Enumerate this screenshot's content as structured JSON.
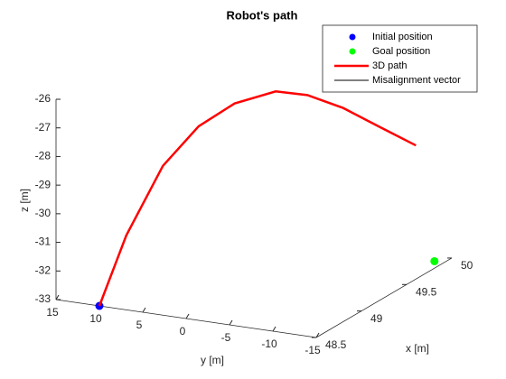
{
  "chart_data": {
    "type": "line3d",
    "title": "Robot's path",
    "xlabel": "x [m]",
    "ylabel": "y [m]",
    "zlabel": "z [m]",
    "xlim": [
      48.5,
      50
    ],
    "ylim": [
      -15,
      15
    ],
    "zlim": [
      -33,
      -26
    ],
    "xticks": [
      48.5,
      49,
      49.5,
      50
    ],
    "yticks": [
      15,
      10,
      5,
      0,
      -5,
      -10,
      -15
    ],
    "zticks": [
      -26,
      -27,
      -28,
      -29,
      -30,
      -31,
      -32,
      -33
    ],
    "grid": false,
    "legend": "upper right",
    "series": [
      {
        "name": "Initial position",
        "color": "#0000ff",
        "style": "marker",
        "x": [
          48.5
        ],
        "y": [
          10
        ],
        "z": [
          -33
        ]
      },
      {
        "name": "Goal position",
        "color": "#00ff00",
        "style": "marker",
        "x": [
          50
        ],
        "y": [
          -13
        ],
        "z": [
          -33.2
        ]
      },
      {
        "name": "3D path",
        "color": "#ff0000",
        "style": "line",
        "x": [
          48.5,
          48.5,
          48.55,
          48.6,
          48.7,
          48.8,
          48.9,
          49.0,
          49.1,
          49.2
        ],
        "y": [
          10,
          6.9,
          3.2,
          -0.4,
          -3.5,
          -7.2,
          -9.8,
          -12.9,
          -16,
          -19.2
        ],
        "z": [
          -33,
          -30.4,
          -27.9,
          -26.45,
          -25.7,
          -25.3,
          -25.5,
          -26.0,
          -26.7,
          -27.4
        ]
      },
      {
        "name": "Misalignment vector",
        "color": "#000000",
        "style": "line",
        "x": [],
        "y": [],
        "z": []
      }
    ]
  }
}
